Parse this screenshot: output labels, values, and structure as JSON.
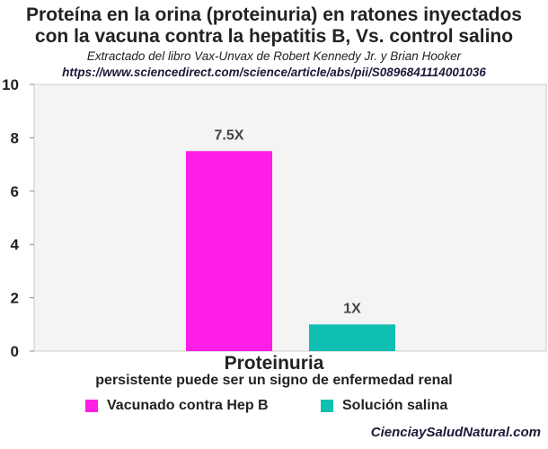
{
  "header": {
    "title_line1": "Proteína en la orina (proteinuria) en ratones inyectados",
    "title_line2": "con la vacuna contra la hepatitis B, Vs. control salino",
    "subtitle": "Extractado del libro Vax-Unvax de Robert Kennedy Jr. y Brian Hooker",
    "url": "https://www.sciencedirect.com/science/article/abs/pii/S0896841114001036"
  },
  "chart_data": {
    "type": "bar",
    "xlabel": "Proteinuria",
    "note": "persistente puede ser un signo de enfermedad renal",
    "ylim": [
      0,
      10
    ],
    "yticks": [
      0,
      2,
      4,
      6,
      8,
      10
    ],
    "grid": false,
    "legend_position": "bottom",
    "series": [
      {
        "name": "Vacunado contra Hep B",
        "value": 7.5,
        "label": "7.5X",
        "color": "#ff1ee6"
      },
      {
        "name": "Solución salina",
        "value": 1,
        "label": "1X",
        "color": "#0fbfb1"
      }
    ]
  },
  "footer": {
    "site": "CienciaySaludNatural.com"
  },
  "colors": {
    "plot_background": "#f4f4f4",
    "text": "#222222"
  }
}
